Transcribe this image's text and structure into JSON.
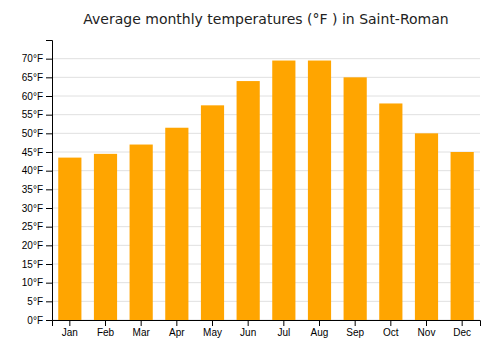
{
  "chart_data": {
    "type": "bar",
    "title": "Average monthly temperatures (°F ) in Saint-Roman",
    "categories": [
      "Jan",
      "Feb",
      "Mar",
      "Apr",
      "May",
      "Jun",
      "Jul",
      "Aug",
      "Sep",
      "Oct",
      "Nov",
      "Dec"
    ],
    "values": [
      43.5,
      44.5,
      47.0,
      51.5,
      57.5,
      64.0,
      69.5,
      69.5,
      65.0,
      58.0,
      50.0,
      45.0
    ],
    "color": "#FFA500",
    "ylim": [
      0,
      75
    ],
    "yticks": [
      {
        "value": 0,
        "label": "0°F"
      },
      {
        "value": 5,
        "label": "5°F"
      },
      {
        "value": 10,
        "label": "10°F"
      },
      {
        "value": 15,
        "label": "15°F"
      },
      {
        "value": 20,
        "label": "20°F"
      },
      {
        "value": 25,
        "label": "25°F"
      },
      {
        "value": 30,
        "label": "30°F"
      },
      {
        "value": 35,
        "label": "35°F"
      },
      {
        "value": 40,
        "label": "40°F"
      },
      {
        "value": 45,
        "label": "45°F"
      },
      {
        "value": 50,
        "label": "50°F"
      },
      {
        "value": 55,
        "label": "55°F"
      },
      {
        "value": 60,
        "label": "60°F"
      },
      {
        "value": 65,
        "label": "65°F"
      },
      {
        "value": 70,
        "label": "70°F"
      }
    ],
    "grid": true
  }
}
